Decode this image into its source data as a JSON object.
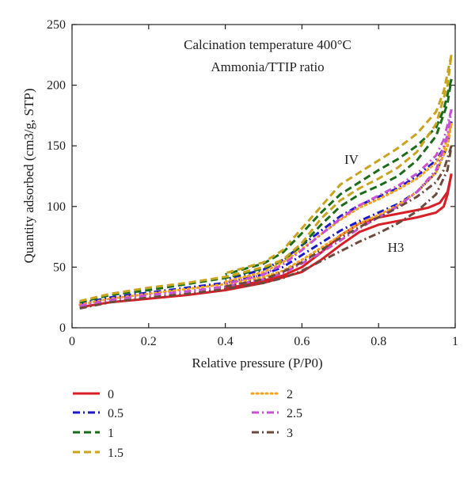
{
  "chart_data": {
    "type": "line",
    "xlabel": "Relative pressure (P/P0)",
    "ylabel": "Quantity adsorbed (cm3/g, STP)",
    "xlim": [
      0,
      1
    ],
    "ylim": [
      0,
      250
    ],
    "xticks": [
      "0",
      "0.2",
      "0.4",
      "0.6",
      "0.8",
      "1"
    ],
    "yticks": [
      "0",
      "50",
      "100",
      "150",
      "200",
      "250"
    ],
    "grid": false,
    "legend_position": "below",
    "legend_title": "Ammonia/TTIP ratio",
    "annotations": {
      "line1": "Calcination temperature 400°C",
      "line2": "Ammonia/TTIP ratio",
      "type_iv": "IV",
      "type_h3": "H3"
    },
    "series": [
      {
        "name": "0",
        "color": "#d71f26",
        "dash": "solid",
        "adsorption": [
          [
            0.02,
            17
          ],
          [
            0.1,
            21
          ],
          [
            0.2,
            24
          ],
          [
            0.3,
            27
          ],
          [
            0.4,
            31
          ],
          [
            0.5,
            37
          ],
          [
            0.6,
            46
          ],
          [
            0.65,
            56
          ],
          [
            0.7,
            68
          ],
          [
            0.75,
            79
          ],
          [
            0.8,
            85
          ],
          [
            0.85,
            88
          ],
          [
            0.9,
            91
          ],
          [
            0.95,
            95
          ],
          [
            0.97,
            100
          ],
          [
            0.98,
            110
          ],
          [
            0.99,
            127
          ]
        ],
        "desorption": [
          [
            0.99,
            127
          ],
          [
            0.98,
            112
          ],
          [
            0.96,
            103
          ],
          [
            0.93,
            99
          ],
          [
            0.9,
            97
          ],
          [
            0.85,
            94
          ],
          [
            0.8,
            91
          ],
          [
            0.75,
            86
          ],
          [
            0.7,
            76
          ],
          [
            0.65,
            62
          ],
          [
            0.6,
            50
          ],
          [
            0.55,
            43
          ],
          [
            0.5,
            39
          ],
          [
            0.4,
            32
          ]
        ]
      },
      {
        "name": "0.5",
        "color": "#1a1ac8",
        "dash": "dashdot",
        "adsorption": [
          [
            0.02,
            20
          ],
          [
            0.1,
            25
          ],
          [
            0.2,
            29
          ],
          [
            0.3,
            33
          ],
          [
            0.4,
            37
          ],
          [
            0.5,
            44
          ],
          [
            0.55,
            50
          ],
          [
            0.6,
            60
          ],
          [
            0.65,
            70
          ],
          [
            0.7,
            80
          ],
          [
            0.75,
            88
          ],
          [
            0.8,
            95
          ],
          [
            0.85,
            102
          ],
          [
            0.9,
            112
          ],
          [
            0.95,
            128
          ],
          [
            0.98,
            150
          ],
          [
            0.99,
            170
          ]
        ],
        "desorption": [
          [
            0.99,
            170
          ],
          [
            0.97,
            148
          ],
          [
            0.95,
            138
          ],
          [
            0.9,
            125
          ],
          [
            0.85,
            115
          ],
          [
            0.8,
            108
          ],
          [
            0.75,
            101
          ],
          [
            0.7,
            92
          ],
          [
            0.65,
            80
          ],
          [
            0.6,
            68
          ],
          [
            0.55,
            56
          ],
          [
            0.5,
            48
          ],
          [
            0.4,
            40
          ]
        ]
      },
      {
        "name": "1",
        "color": "#1b6b1b",
        "dash": "dashed",
        "adsorption": [
          [
            0.02,
            21
          ],
          [
            0.1,
            27
          ],
          [
            0.2,
            31
          ],
          [
            0.3,
            36
          ],
          [
            0.4,
            41
          ],
          [
            0.5,
            49
          ],
          [
            0.55,
            55
          ],
          [
            0.6,
            68
          ],
          [
            0.65,
            85
          ],
          [
            0.7,
            100
          ],
          [
            0.75,
            110
          ],
          [
            0.8,
            117
          ],
          [
            0.85,
            125
          ],
          [
            0.9,
            138
          ],
          [
            0.95,
            158
          ],
          [
            0.98,
            185
          ],
          [
            0.99,
            205
          ]
        ],
        "desorption": [
          [
            0.99,
            205
          ],
          [
            0.97,
            180
          ],
          [
            0.95,
            165
          ],
          [
            0.9,
            150
          ],
          [
            0.85,
            139
          ],
          [
            0.8,
            130
          ],
          [
            0.75,
            120
          ],
          [
            0.7,
            110
          ],
          [
            0.65,
            95
          ],
          [
            0.6,
            78
          ],
          [
            0.55,
            62
          ],
          [
            0.5,
            53
          ],
          [
            0.4,
            44
          ]
        ]
      },
      {
        "name": "1.5",
        "color": "#c8a41e",
        "dash": "dashed",
        "adsorption": [
          [
            0.02,
            22
          ],
          [
            0.1,
            28
          ],
          [
            0.2,
            33
          ],
          [
            0.3,
            37
          ],
          [
            0.4,
            42
          ],
          [
            0.5,
            50
          ],
          [
            0.55,
            56
          ],
          [
            0.6,
            70
          ],
          [
            0.65,
            90
          ],
          [
            0.7,
            105
          ],
          [
            0.75,
            115
          ],
          [
            0.8,
            123
          ],
          [
            0.85,
            132
          ],
          [
            0.9,
            145
          ],
          [
            0.95,
            168
          ],
          [
            0.98,
            200
          ],
          [
            0.99,
            225
          ]
        ],
        "desorption": [
          [
            0.99,
            225
          ],
          [
            0.97,
            195
          ],
          [
            0.95,
            178
          ],
          [
            0.9,
            160
          ],
          [
            0.85,
            148
          ],
          [
            0.8,
            138
          ],
          [
            0.75,
            128
          ],
          [
            0.7,
            118
          ],
          [
            0.65,
            100
          ],
          [
            0.6,
            82
          ],
          [
            0.55,
            64
          ],
          [
            0.5,
            54
          ],
          [
            0.4,
            45
          ]
        ]
      },
      {
        "name": "2",
        "color": "#f5a21e",
        "dash": "dotted",
        "adsorption": [
          [
            0.02,
            19
          ],
          [
            0.1,
            24
          ],
          [
            0.2,
            28
          ],
          [
            0.3,
            32
          ],
          [
            0.4,
            36
          ],
          [
            0.5,
            42
          ],
          [
            0.55,
            47
          ],
          [
            0.6,
            56
          ],
          [
            0.65,
            66
          ],
          [
            0.7,
            76
          ],
          [
            0.75,
            86
          ],
          [
            0.8,
            93
          ],
          [
            0.85,
            101
          ],
          [
            0.9,
            112
          ],
          [
            0.95,
            128
          ],
          [
            0.98,
            150
          ],
          [
            0.99,
            168
          ]
        ],
        "desorption": [
          [
            0.99,
            168
          ],
          [
            0.97,
            147
          ],
          [
            0.95,
            136
          ],
          [
            0.9,
            123
          ],
          [
            0.85,
            114
          ],
          [
            0.8,
            106
          ],
          [
            0.75,
            99
          ],
          [
            0.7,
            89
          ],
          [
            0.65,
            77
          ],
          [
            0.6,
            65
          ],
          [
            0.55,
            54
          ],
          [
            0.5,
            46
          ],
          [
            0.4,
            38
          ]
        ]
      },
      {
        "name": "2.5",
        "color": "#c84fd6",
        "dash": "dashdot",
        "adsorption": [
          [
            0.02,
            18
          ],
          [
            0.1,
            23
          ],
          [
            0.2,
            27
          ],
          [
            0.3,
            30
          ],
          [
            0.4,
            34
          ],
          [
            0.5,
            40
          ],
          [
            0.55,
            45
          ],
          [
            0.6,
            53
          ],
          [
            0.65,
            62
          ],
          [
            0.7,
            72
          ],
          [
            0.75,
            82
          ],
          [
            0.8,
            91
          ],
          [
            0.85,
            100
          ],
          [
            0.9,
            112
          ],
          [
            0.95,
            130
          ],
          [
            0.98,
            158
          ],
          [
            0.99,
            180
          ]
        ],
        "desorption": [
          [
            0.99,
            180
          ],
          [
            0.97,
            155
          ],
          [
            0.95,
            142
          ],
          [
            0.9,
            127
          ],
          [
            0.85,
            117
          ],
          [
            0.8,
            109
          ],
          [
            0.75,
            101
          ],
          [
            0.7,
            90
          ],
          [
            0.65,
            77
          ],
          [
            0.6,
            64
          ],
          [
            0.55,
            52
          ],
          [
            0.5,
            44
          ],
          [
            0.4,
            36
          ]
        ]
      },
      {
        "name": "3",
        "color": "#6b4a3e",
        "dash": "dashdot",
        "adsorption": [
          [
            0.02,
            16
          ],
          [
            0.1,
            21
          ],
          [
            0.2,
            25
          ],
          [
            0.3,
            28
          ],
          [
            0.4,
            32
          ],
          [
            0.5,
            37
          ],
          [
            0.55,
            41
          ],
          [
            0.6,
            47
          ],
          [
            0.65,
            55
          ],
          [
            0.7,
            63
          ],
          [
            0.75,
            71
          ],
          [
            0.8,
            78
          ],
          [
            0.85,
            86
          ],
          [
            0.9,
            96
          ],
          [
            0.95,
            110
          ],
          [
            0.98,
            130
          ],
          [
            0.99,
            150
          ]
        ],
        "desorption": [
          [
            0.99,
            150
          ],
          [
            0.97,
            130
          ],
          [
            0.95,
            120
          ],
          [
            0.9,
            108
          ],
          [
            0.85,
            99
          ],
          [
            0.8,
            91
          ],
          [
            0.75,
            83
          ],
          [
            0.7,
            74
          ],
          [
            0.65,
            64
          ],
          [
            0.6,
            54
          ],
          [
            0.55,
            46
          ],
          [
            0.5,
            40
          ],
          [
            0.4,
            34
          ]
        ]
      }
    ]
  }
}
